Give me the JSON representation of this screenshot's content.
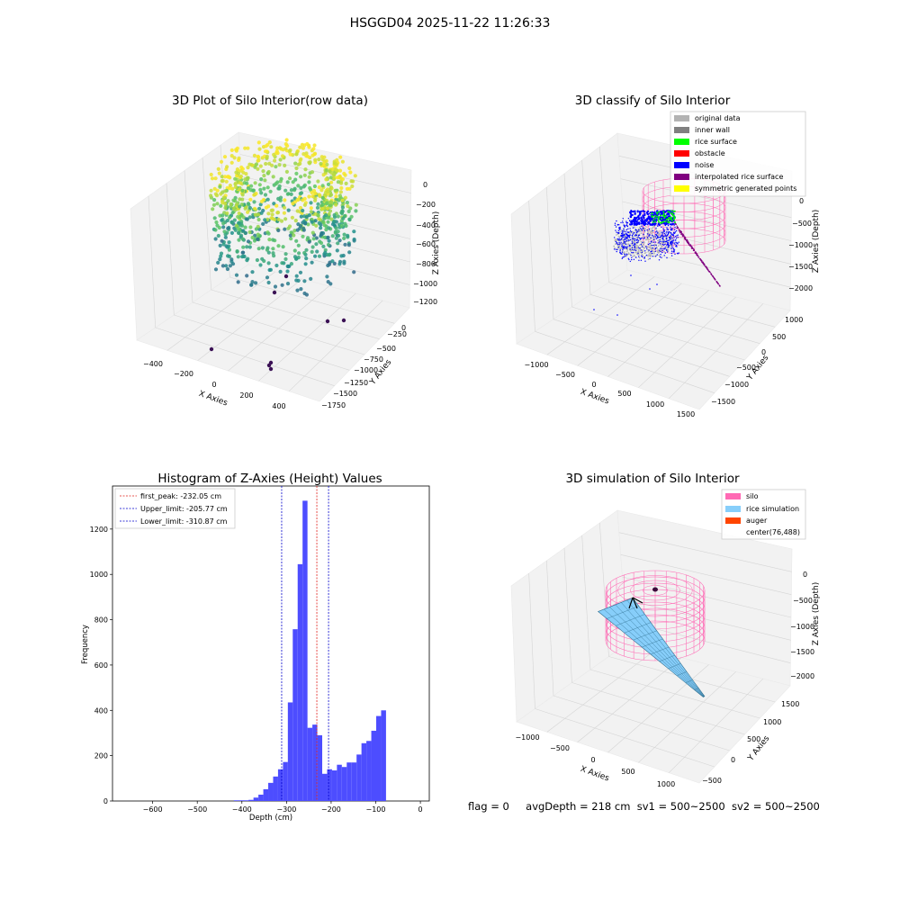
{
  "figure_title": "HSGGD04 2025-11-22 11:26:33",
  "status_line": {
    "flag": "flag = 0",
    "avg_depth": "avgDepth = 218 cm",
    "sv1": "sv1 = 500~2500",
    "sv2": "sv2 = 500~2500"
  },
  "colors": {
    "histogram_bar": "#4d4dff",
    "first_peak_line": "#e0201b",
    "limit_line": "#0000cc",
    "silo_wire": "#ff69b4",
    "rice_sim": "#87cefa",
    "auger": "#ff4500",
    "inner_wall": "#808080",
    "original_data": "#b3b3b3",
    "rice_surface": "#00ff00",
    "obstacle": "#ff0000",
    "noise": "#0000ff",
    "interpolated": "#800080",
    "symmetric": "#ffff00"
  },
  "chart_data": [
    {
      "type": "scatter",
      "title": "3D Plot of Silo Interior(row data)",
      "xlabel": "X Axies",
      "ylabel": "Y Axies",
      "zlabel": "Z Axies (Depth)",
      "x_ticks": [
        "−400",
        "−200",
        "0",
        "200",
        "400"
      ],
      "y_ticks": [
        "0",
        "−250",
        "−500",
        "−750",
        "−1000",
        "−1250",
        "−1500",
        "−1750"
      ],
      "z_ticks": [
        "0",
        "−200",
        "−400",
        "−600",
        "−800",
        "−1000",
        "−1200"
      ]
    },
    {
      "type": "scatter",
      "title": "3D classify of Silo Interior",
      "xlabel": "X Axies",
      "ylabel": "Y Axies",
      "zlabel": "Z Axies (Depth)",
      "x_ticks": [
        "−1000",
        "−500",
        "0",
        "500",
        "1000",
        "1500"
      ],
      "y_ticks": [
        "1000",
        "500",
        "0",
        "−500",
        "−1000",
        "−1500"
      ],
      "z_ticks": [
        "0",
        "−500",
        "−1000",
        "−1500",
        "−2000"
      ],
      "legend": [
        "original data",
        "inner wall",
        "rice surface",
        "obstacle",
        "noise",
        "interpolated rice surface",
        "symmetric generated points"
      ],
      "legend_position": "top-right"
    },
    {
      "type": "bar",
      "title": "Histogram of Z-Axies (Height) Values",
      "xlabel": "Depth (cm)",
      "ylabel": "Frequency",
      "xlim": [
        -690,
        20
      ],
      "ylim": [
        0,
        1390
      ],
      "x_ticks": [
        -600,
        -500,
        -400,
        -300,
        -200,
        -100,
        0
      ],
      "x_tick_labels": [
        "−600",
        "−500",
        "−400",
        "−300",
        "−200",
        "−100",
        "0"
      ],
      "y_ticks": [
        0,
        200,
        400,
        600,
        800,
        1000,
        1200
      ],
      "y_tick_labels": [
        "0",
        "200",
        "400",
        "600",
        "800",
        "1000",
        "1200"
      ],
      "bin_left_edges": [
        -418,
        -407,
        -396,
        -385,
        -374,
        -363,
        -352,
        -341,
        -330,
        -319,
        -308,
        -297,
        -286,
        -275,
        -264,
        -253,
        -242,
        -231,
        -220,
        -209,
        -198,
        -187,
        -176,
        -165,
        -154,
        -143,
        -132,
        -121,
        -110,
        -99,
        -88,
        -77,
        -66,
        -55,
        -44,
        -33,
        -22
      ],
      "bin_width": 11,
      "values": [
        3,
        3,
        3,
        5,
        15,
        28,
        52,
        80,
        108,
        140,
        172,
        435,
        758,
        1045,
        1325,
        323,
        337,
        290,
        120,
        140,
        135,
        160,
        150,
        170,
        170,
        205,
        255,
        265,
        310,
        375,
        400,
        0,
        0,
        0,
        0,
        0,
        0
      ],
      "lines": [
        {
          "name": "first_peak: -232.05 cm",
          "x": -232.05,
          "style": "dashed",
          "color": "red"
        },
        {
          "name": "Upper_limit: -205.77 cm",
          "x": -205.77,
          "style": "dashed",
          "color": "blue"
        },
        {
          "name": "Lower_limit: -310.87 cm",
          "x": -310.87,
          "style": "dashed",
          "color": "blue"
        }
      ],
      "legend_position": "top-left"
    },
    {
      "type": "scatter",
      "title": "3D simulation of Silo Interior",
      "xlabel": "X Axies",
      "ylabel": "Y Axies",
      "zlabel": "Z Axies (Depth)",
      "x_ticks": [
        "−1000",
        "−500",
        "0",
        "500",
        "1000"
      ],
      "y_ticks": [
        "1500",
        "1000",
        "500",
        "0",
        "−500"
      ],
      "z_ticks": [
        "0",
        "−500",
        "−1000",
        "−1500",
        "−2000"
      ],
      "legend": [
        "silo",
        "rice simulation",
        "auger",
        "center(76,488)"
      ],
      "legend_position": "top-right"
    }
  ]
}
